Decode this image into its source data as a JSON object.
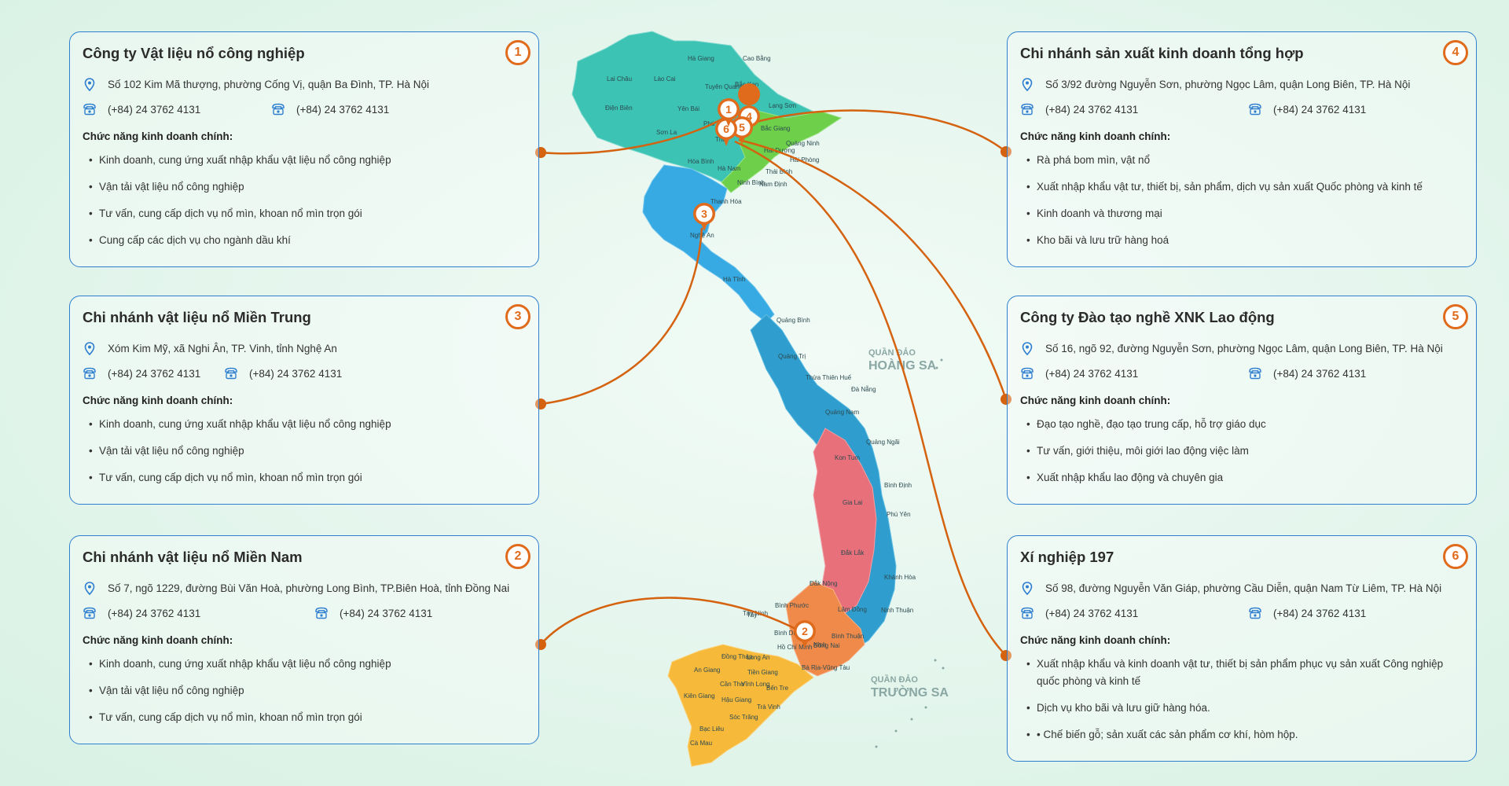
{
  "colors": {
    "accent": "#e06b1c",
    "border": "#2f7fd0",
    "icon": "#2f7fd0"
  },
  "map": {
    "provinces": [
      "Hà Giang",
      "Cao Bằng",
      "Lai Châu",
      "Lào Cai",
      "Tuyên Quang",
      "Bắc Kạn",
      "Điện Biên",
      "Yên Bái",
      "Lạng Sơn",
      "Sơn La",
      "Bắc Giang",
      "Quảng Ninh",
      "Hải Dương",
      "Hải Phòng",
      "Hòa Bình",
      "Hà Nam",
      "Thái Bình",
      "Ninh Bình",
      "Nam Định",
      "Thanh Hóa",
      "Nghệ An",
      "Hà Tĩnh",
      "Quảng Bình",
      "Quảng Trị",
      "Thừa Thiên Huế",
      "Đà Nẵng",
      "Quảng Nam",
      "Quảng Ngãi",
      "Kon Tum",
      "Gia Lai",
      "Bình Định",
      "Phú Yên",
      "Đắk Lắk",
      "Khánh Hòa",
      "Đắk Nông",
      "Lâm Đồng",
      "Ninh Thuận",
      "Bình Phước",
      "Tây Ninh",
      "Bình Dương",
      "Bình Thuận",
      "Đồng Nai",
      "Bà Rịa-Vũng Tàu",
      "Long An",
      "Tiền Giang",
      "Bến Tre",
      "Đồng Tháp",
      "An Giang",
      "Cần Thơ",
      "Vĩnh Long",
      "Kiên Giang",
      "Hậu Giang",
      "Trà Vinh",
      "Sóc Trăng",
      "Bạc Liêu",
      "Cà Mau",
      "Hồ Chí Minh",
      "Ninh",
      "Thái",
      "Phú Thọ",
      "Tây"
    ],
    "islands": [
      {
        "small": "QUẦN ĐẢO",
        "big": "HOÀNG SA"
      },
      {
        "small": "QUẦN ĐẢO",
        "big": "TRƯỜNG SA"
      }
    ]
  },
  "cards": [
    {
      "num": "1",
      "title": "Công ty Vật liệu nổ công nghiệp",
      "address": "Số 102 Kim Mã thượng, phường Cống Vị, quận Ba Đình, TP. Hà Nội",
      "phone1": "(+84) 24 3762 4131",
      "phone2": "(+84) 24 3762 4131",
      "section": "Chức năng kinh doanh chính:",
      "items": [
        "Kinh doanh, cung ứng xuất nhập khẩu vật liệu nổ công nghiệp",
        "Vận tải vật liệu nổ công nghiệp",
        "Tư vấn, cung cấp dịch vụ nổ mìn, khoan nổ mìn trọn gói",
        "Cung cấp các dịch vụ cho ngành dầu khí"
      ]
    },
    {
      "num": "3",
      "title": "Chi nhánh vật liệu nổ Miền Trung",
      "address": "Xóm Kim Mỹ, xã Nghi Ân, TP. Vinh, tỉnh Nghệ An",
      "phone1": "(+84) 24 3762 4131",
      "phone2": "(+84) 24 3762 4131",
      "section": "Chức năng kinh doanh chính:",
      "items": [
        "Kinh doanh, cung ứng xuất nhập khẩu vật liệu nổ công nghiệp",
        "Vận tải vật liệu nổ công nghiệp",
        "Tư vấn, cung cấp dịch vụ nổ mìn, khoan nổ mìn trọn gói"
      ]
    },
    {
      "num": "2",
      "title": "Chi nhánh vật liệu nổ Miền Nam",
      "address": "Số 7, ngõ 1229, đường Bùi Văn Hoà, phường Long Bình, TP.Biên Hoà, tỉnh Đồng Nai",
      "phone1": "(+84) 24 3762 4131",
      "phone2": "(+84) 24 3762 4131",
      "section": "Chức năng kinh doanh chính:",
      "items": [
        "Kinh doanh, cung ứng xuất nhập khẩu vật liệu nổ công nghiệp",
        "Vận tải vật liệu nổ công nghiệp",
        "Tư vấn, cung cấp dịch vụ nổ mìn, khoan nổ mìn trọn gói"
      ]
    },
    {
      "num": "4",
      "title": "Chi nhánh sản xuất kinh doanh tổng hợp",
      "address": "Số 3/92 đường Nguyễn Sơn, phường Ngọc Lâm, quận Long Biên, TP. Hà Nội",
      "phone1": "(+84) 24 3762 4131",
      "phone2": "(+84) 24 3762 4131",
      "section": "Chức năng kinh doanh chính:",
      "items": [
        "Rà phá bom mìn, vật nổ",
        "Xuất nhập khẩu vật tư, thiết bị, sản phẩm, dịch vụ sản xuất Quốc phòng và kinh tế",
        "Kinh doanh và thương mại",
        "Kho bãi và lưu trữ hàng hoá"
      ]
    },
    {
      "num": "5",
      "title": "Công ty Đào tạo nghề XNK Lao động",
      "address": "Số 16, ngõ 92, đường Nguyễn Sơn, phường Ngọc Lâm, quận Long Biên, TP. Hà Nội",
      "phone1": "(+84) 24 3762 4131",
      "phone2": "(+84) 24 3762 4131",
      "section": "Chức năng kinh doanh chính:",
      "items": [
        "Đạo tạo nghề, đạo tạo trung cấp, hỗ trợ giáo dục",
        "Tư vấn, giới thiệu, môi giới lao động việc làm",
        "Xuất nhập khẩu lao động và chuyên gia"
      ]
    },
    {
      "num": "6",
      "title": "Xí nghiệp 197",
      "address": "Số 98, đường Nguyễn Văn Giáp, phường Cầu Diễn, quận Nam Từ Liêm, TP. Hà Nội",
      "phone1": "(+84) 24 3762 4131",
      "phone2": "(+84) 24 3762 4131",
      "section": "Chức năng kinh doanh chính:",
      "items": [
        "Xuất nhập khẩu và kinh doanh vật tư, thiết bị sản phẩm phục vụ sản xuất Công nghiệp quốc phòng và kinh tế",
        "Dịch vụ kho bãi và lưu giữ hàng hóa.",
        "• Chế biến gỗ; sản xuất các sản phẩm cơ khí, hòm hộp."
      ]
    }
  ],
  "pins": [
    "1",
    "6",
    "5",
    "4",
    "3",
    "2"
  ]
}
